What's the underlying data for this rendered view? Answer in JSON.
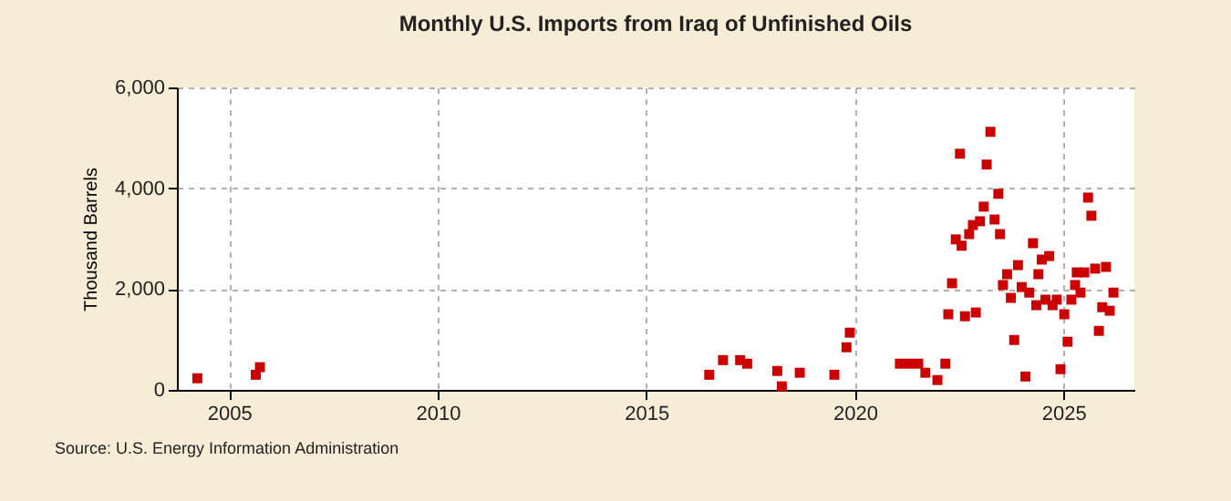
{
  "chart_data": {
    "type": "scatter",
    "title": "Monthly U.S. Imports from Iraq of Unfinished Oils",
    "ylabel": "Thousand Barrels",
    "annotations": [
      "Source: U.S. Energy Information Administration"
    ],
    "xlim": [
      2003.75,
      2026.7
    ],
    "xticks": [
      2005,
      2010,
      2015,
      2020,
      2025
    ],
    "ylim": [
      0,
      6000
    ],
    "yticks": [
      0,
      {
        "value": 2000,
        "label": "2,000"
      },
      {
        "value": 4000,
        "label": "4,000"
      },
      {
        "value": 6000,
        "label": "6,000"
      }
    ],
    "grid": true,
    "marker": "square",
    "legend": false,
    "series": [
      {
        "color": "#cc0000",
        "x": [
          2004.24,
          2005.64,
          2005.74,
          2016.51,
          2016.84,
          2017.25,
          2017.42,
          2018.14,
          2018.25,
          2018.68,
          2019.51,
          2019.8,
          2019.88,
          2021.08,
          2021.3,
          2021.52,
          2021.69,
          2021.98,
          2022.17,
          2022.24,
          2022.33,
          2022.42,
          2022.52,
          2022.56,
          2022.64,
          2022.74,
          2022.83,
          2022.9,
          2023.0,
          2023.09,
          2023.16,
          2023.25,
          2023.35,
          2023.44,
          2023.48,
          2023.55,
          2023.65,
          2023.74,
          2023.82,
          2023.91,
          2024.0,
          2024.09,
          2024.18,
          2024.27,
          2024.35,
          2024.4,
          2024.48,
          2024.57,
          2024.66,
          2024.74,
          2024.84,
          2024.93,
          2025.02,
          2025.1,
          2025.19,
          2025.28,
          2025.32,
          2025.41,
          2025.5,
          2025.59,
          2025.67,
          2025.76,
          2025.85,
          2025.93,
          2026.02,
          2026.11,
          2026.2
        ],
        "values": [
          230,
          300,
          450,
          300,
          590,
          590,
          520,
          375,
          70,
          340,
          300,
          845,
          1135,
          520,
          520,
          520,
          340,
          195,
          520,
          1500,
          2115,
          2985,
          4685,
          2860,
          1460,
          3090,
          3270,
          1535,
          3345,
          3635,
          4470,
          5120,
          3380,
          3890,
          3090,
          2080,
          2295,
          1825,
          990,
          2475,
          2040,
          265,
          1930,
          2910,
          1680,
          2295,
          2585,
          1790,
          2655,
          1680,
          1790,
          410,
          1500,
          955,
          1790,
          2080,
          2330,
          1930,
          2330,
          3815,
          3455,
          2405,
          1170,
          1640,
          2440,
          1570,
          1930
        ]
      }
    ]
  }
}
